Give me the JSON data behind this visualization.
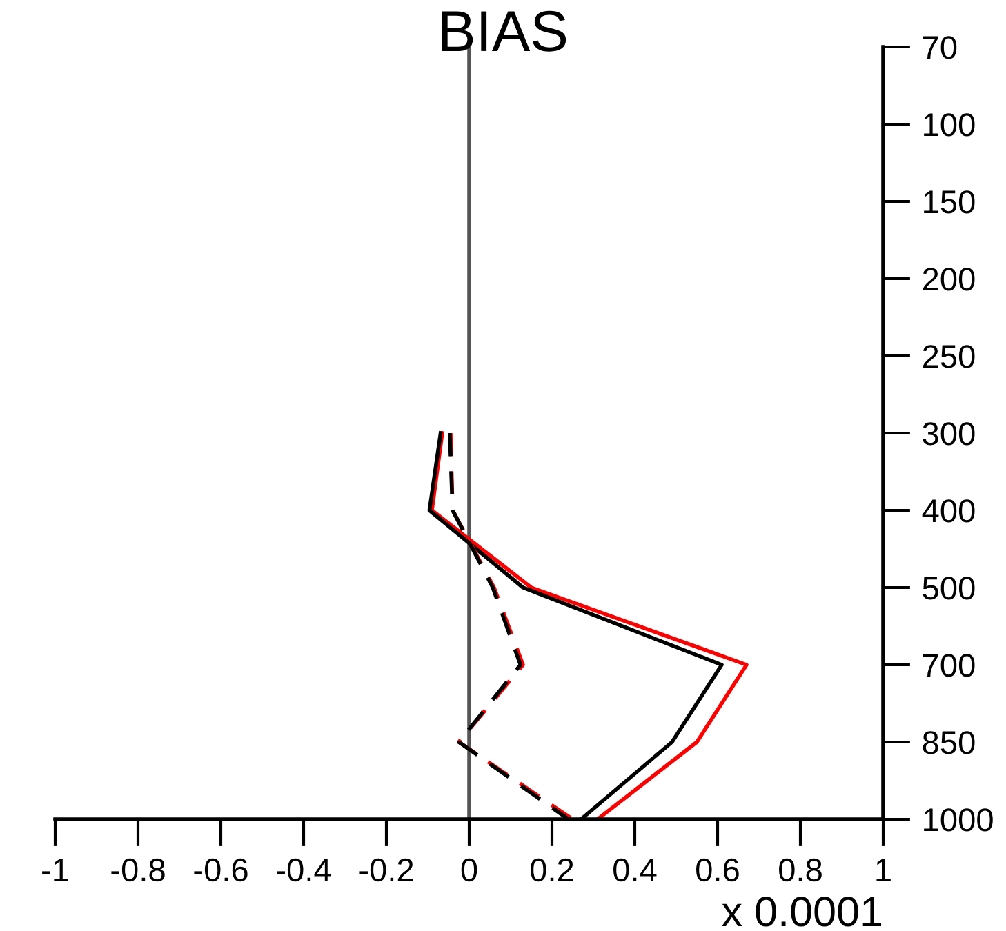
{
  "chart_data": {
    "type": "line",
    "orientation": "horizontal",
    "title": "BIAS",
    "xlabel": "x 0.0001",
    "categories": [
      "70",
      "100",
      "150",
      "200",
      "250",
      "300",
      "400",
      "500",
      "700",
      "850",
      "1000"
    ],
    "xlim": [
      -1,
      1
    ],
    "xticks": [
      -1,
      -0.8,
      -0.6,
      -0.4,
      -0.2,
      0,
      0.2,
      0.4,
      0.6,
      0.8,
      1
    ],
    "series": [
      {
        "color": "#ff0000",
        "line_style": "solid",
        "values": [
          null,
          null,
          null,
          null,
          null,
          -0.065,
          -0.09,
          0.15,
          0.67,
          0.55,
          0.31
        ]
      },
      {
        "color": "#000000",
        "line_style": "solid",
        "values": [
          null,
          null,
          null,
          null,
          null,
          -0.069,
          -0.096,
          0.13,
          0.61,
          0.49,
          0.27
        ]
      },
      {
        "color": "#ff0000",
        "line_style": "dashed",
        "values": [
          null,
          null,
          null,
          null,
          null,
          -0.045,
          -0.04,
          0.06,
          0.13,
          -0.025,
          0.25
        ]
      },
      {
        "color": "#000000",
        "line_style": "dashed",
        "values": [
          null,
          null,
          null,
          null,
          null,
          -0.047,
          -0.04,
          0.057,
          0.124,
          -0.025,
          0.24
        ]
      }
    ],
    "ref_lines": [
      {
        "axis": "x",
        "value": 0,
        "color": "#555555"
      }
    ],
    "grid": false,
    "legend": false
  }
}
